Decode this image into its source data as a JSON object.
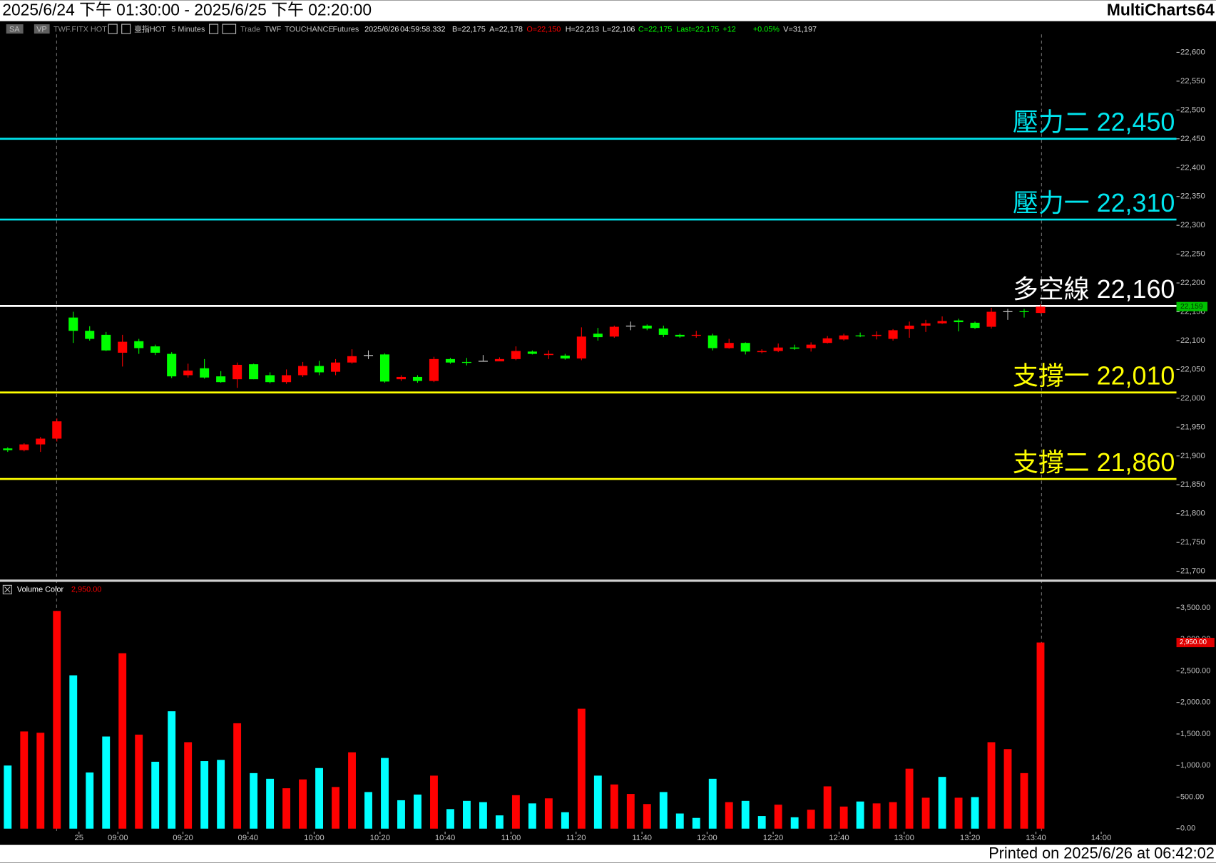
{
  "header": {
    "title": "2025/6/24 下午 01:30:00 - 2025/6/25 下午 02:20:00",
    "app": "MultiCharts64",
    "toolbar": [
      {
        "text": "SA",
        "color": "#c0c0c0"
      },
      {
        "text": "VP",
        "color": "#c0c0c0"
      },
      {
        "text": "TWF.FITX HOT",
        "color": "#8a8a8a"
      },
      {
        "text": "臺指HOT",
        "color": "#c0c0c0"
      },
      {
        "text": "5 Minutes",
        "color": "#c0c0c0"
      },
      {
        "text": "Trade",
        "color": "#8a8a8a"
      },
      {
        "text": "TWF",
        "color": "#c0c0c0"
      },
      {
        "text": "TOUCHANCE",
        "color": "#c0c0c0"
      },
      {
        "text": "Futures",
        "color": "#c0c0c0"
      },
      {
        "text": "2025/6/26",
        "color": "#e0e0e0"
      },
      {
        "text": "04:59:58.332",
        "color": "#e0e0e0"
      },
      {
        "text": "B=22,175",
        "color": "#e0e0e0"
      },
      {
        "text": "A=22,178",
        "color": "#e0e0e0"
      },
      {
        "text": "O=22,150",
        "color": "#ff0000"
      },
      {
        "text": "H=22,213",
        "color": "#e0e0e0"
      },
      {
        "text": "L=22,106",
        "color": "#e0e0e0"
      },
      {
        "text": "C=22,175",
        "color": "#00ff00"
      },
      {
        "text": "Last=22,175",
        "color": "#00ff00"
      },
      {
        "text": "+12",
        "color": "#00ff00"
      },
      {
        "text": "+0.05%",
        "color": "#00ff00"
      },
      {
        "text": "V=31,197",
        "color": "#e0e0e0"
      }
    ],
    "footer": "Printed on 2025/6/26 at 06:42:02"
  },
  "chart_data": [
    {
      "type": "candlestick",
      "open": [
        21913,
        21910,
        21920,
        21930,
        22140,
        22117,
        22110,
        22079,
        22099,
        22090,
        22077,
        22040,
        22052,
        22038,
        22033,
        22059,
        22040,
        22028,
        22040,
        22056,
        22046,
        22062,
        22075,
        22076,
        22033,
        22037,
        22030,
        22068,
        22063,
        22065,
        22064,
        22068,
        22081,
        22075,
        22074,
        22069,
        22112,
        22107,
        22126,
        22126,
        22121,
        22110,
        22109,
        22109,
        22087,
        22096,
        22080,
        22082,
        22088,
        22087,
        22096,
        22102,
        22109,
        22108,
        22103,
        22120,
        22126,
        22130,
        22135,
        22131,
        22124,
        22151,
        22151,
        22148
      ],
      "high": [
        21915,
        21922,
        21933,
        21965,
        22150,
        22125,
        22115,
        22110,
        22103,
        22093,
        22080,
        22060,
        22068,
        22047,
        22062,
        22060,
        22045,
        22050,
        22063,
        22065,
        22068,
        22085,
        22083,
        22078,
        22040,
        22040,
        22072,
        22070,
        22070,
        22075,
        22071,
        22090,
        22083,
        22083,
        22077,
        22123,
        22122,
        22126,
        22133,
        22128,
        22126,
        22112,
        22117,
        22112,
        22103,
        22097,
        22085,
        22095,
        22093,
        22097,
        22108,
        22112,
        22114,
        22116,
        22120,
        22133,
        22136,
        22142,
        22138,
        22133,
        22157,
        22155,
        22155,
        22163
      ],
      "low": [
        21907,
        21908,
        21907,
        21925,
        22096,
        22100,
        22082,
        22055,
        22077,
        22075,
        22035,
        22036,
        22034,
        22027,
        22018,
        22033,
        22026,
        22025,
        22037,
        22040,
        22040,
        22060,
        22068,
        22027,
        22030,
        22027,
        22028,
        22060,
        22057,
        22064,
        22065,
        22066,
        22076,
        22068,
        22067,
        22066,
        22100,
        22105,
        22118,
        22118,
        22106,
        22105,
        22105,
        22083,
        22086,
        22076,
        22078,
        22080,
        22084,
        22081,
        22095,
        22100,
        22106,
        22102,
        22100,
        22105,
        22115,
        22129,
        22116,
        22120,
        22121,
        22136,
        22140,
        22147
      ],
      "close": [
        21910,
        21920,
        21930,
        21960,
        22117,
        22103,
        22083,
        22098,
        22087,
        22079,
        22038,
        22048,
        22036,
        22028,
        22058,
        22033,
        22028,
        22040,
        22056,
        22045,
        22062,
        22073,
        22075,
        22029,
        22037,
        22030,
        22068,
        22062,
        22062,
        22065,
        22068,
        22082,
        22077,
        22077,
        22069,
        22107,
        22106,
        22124,
        22126,
        22121,
        22110,
        22107,
        22110,
        22087,
        22096,
        22081,
        22082,
        22088,
        22086,
        22093,
        22104,
        22109,
        22108,
        22110,
        22118,
        22126,
        22130,
        22134,
        22132,
        22122,
        22150,
        22151,
        22150,
        22159
      ],
      "up_color": "#ff0000",
      "down_color": "#00ff00",
      "flat_color": "#c0c0c0",
      "xlim": [
        -0.47,
        71.29
      ],
      "ylim": [
        21685,
        22654
      ],
      "yticks": [
        {
          "value": 21700,
          "label": "21,700"
        },
        {
          "value": 21750,
          "label": "21,750"
        },
        {
          "value": 21800,
          "label": "21,800"
        },
        {
          "value": 21850,
          "label": "21,850"
        },
        {
          "value": 21900,
          "label": "21,900"
        },
        {
          "value": 21950,
          "label": "21,950"
        },
        {
          "value": 22000,
          "label": "22,000"
        },
        {
          "value": 22050,
          "label": "22,050"
        },
        {
          "value": 22100,
          "label": "22,100"
        },
        {
          "value": 22150,
          "label": "22,150"
        },
        {
          "value": 22200,
          "label": "22,200"
        },
        {
          "value": 22250,
          "label": "22,250"
        },
        {
          "value": 22300,
          "label": "22,300"
        },
        {
          "value": 22350,
          "label": "22,350"
        },
        {
          "value": 22400,
          "label": "22,400"
        },
        {
          "value": 22450,
          "label": "22,450"
        },
        {
          "value": 22500,
          "label": "22,500"
        },
        {
          "value": 22550,
          "label": "22,550"
        },
        {
          "value": 22600,
          "label": "22,600"
        }
      ],
      "levels": [
        {
          "value": 22450,
          "label": "壓力二 22,450",
          "color": "#00e5ee"
        },
        {
          "value": 22310,
          "label": "壓力一 22,310",
          "color": "#00e5ee"
        },
        {
          "value": 22160,
          "label": "多空線 22,160",
          "color": "#ffffff"
        },
        {
          "value": 22010,
          "label": "支撐一 22,010",
          "color": "#ffff00"
        },
        {
          "value": 21860,
          "label": "支撐二 21,860",
          "color": "#ffff00"
        }
      ],
      "last_price": {
        "value": 22159,
        "label": "22,159"
      }
    },
    {
      "type": "bar",
      "title": "Volume Color",
      "values": [
        1000,
        1540,
        1520,
        3450,
        2430,
        890,
        1460,
        2780,
        1490,
        1060,
        1860,
        1370,
        1070,
        1090,
        1670,
        880,
        790,
        640,
        780,
        960,
        660,
        1210,
        580,
        1120,
        450,
        540,
        840,
        310,
        440,
        420,
        210,
        530,
        400,
        480,
        260,
        1900,
        840,
        700,
        550,
        390,
        580,
        240,
        170,
        790,
        420,
        440,
        200,
        380,
        180,
        300,
        670,
        350,
        430,
        400,
        420,
        950,
        490,
        820,
        490,
        500,
        1370,
        1260,
        880,
        2950
      ],
      "colors": [
        "#00ffff",
        "#ff0000",
        "#ff0000",
        "#ff0000",
        "#00ffff",
        "#00ffff",
        "#00ffff",
        "#ff0000",
        "#ff0000",
        "#00ffff",
        "#00ffff",
        "#ff0000",
        "#00ffff",
        "#00ffff",
        "#ff0000",
        "#00ffff",
        "#00ffff",
        "#ff0000",
        "#ff0000",
        "#00ffff",
        "#ff0000",
        "#ff0000",
        "#00ffff",
        "#00ffff",
        "#00ffff",
        "#00ffff",
        "#ff0000",
        "#00ffff",
        "#00ffff",
        "#00ffff",
        "#00ffff",
        "#ff0000",
        "#00ffff",
        "#ff0000",
        "#00ffff",
        "#ff0000",
        "#00ffff",
        "#ff0000",
        "#ff0000",
        "#ff0000",
        "#00ffff",
        "#00ffff",
        "#00ffff",
        "#00ffff",
        "#ff0000",
        "#00ffff",
        "#00ffff",
        "#ff0000",
        "#00ffff",
        "#ff0000",
        "#ff0000",
        "#ff0000",
        "#00ffff",
        "#ff0000",
        "#ff0000",
        "#ff0000",
        "#ff0000",
        "#00ffff",
        "#ff0000",
        "#00ffff",
        "#ff0000",
        "#ff0000",
        "#ff0000",
        "#ff0000"
      ],
      "xlim": [
        -0.47,
        71.29
      ],
      "ylim": [
        0,
        3893
      ],
      "yticks": [
        {
          "value": 0,
          "label": "0.00"
        },
        {
          "value": 500,
          "label": "500.00"
        },
        {
          "value": 1000,
          "label": "1,000.00"
        },
        {
          "value": 1500,
          "label": "1,500.00"
        },
        {
          "value": 2000,
          "label": "2,000.00"
        },
        {
          "value": 2500,
          "label": "2,500.00"
        },
        {
          "value": 3000,
          "label": "3,000.00"
        },
        {
          "value": 3500,
          "label": "3,500.00"
        }
      ],
      "xticks": [
        {
          "value": 4.35,
          "label": "25"
        },
        {
          "value": 6.72,
          "label": "09:00"
        },
        {
          "value": 10.69,
          "label": "09:20"
        },
        {
          "value": 14.66,
          "label": "09:40"
        },
        {
          "value": 18.69,
          "label": "10:00"
        },
        {
          "value": 22.71,
          "label": "10:20"
        },
        {
          "value": 26.68,
          "label": "10:40"
        },
        {
          "value": 30.7,
          "label": "11:00"
        },
        {
          "value": 34.67,
          "label": "11:20"
        },
        {
          "value": 38.69,
          "label": "11:40"
        },
        {
          "value": 42.66,
          "label": "12:00"
        },
        {
          "value": 46.69,
          "label": "12:20"
        },
        {
          "value": 50.71,
          "label": "12:40"
        },
        {
          "value": 54.68,
          "label": "13:00"
        },
        {
          "value": 58.7,
          "label": "13:20"
        },
        {
          "value": 62.72,
          "label": "13:40"
        },
        {
          "value": 66.7,
          "label": "14:00"
        }
      ],
      "last_value": {
        "value": 2950,
        "label": "2,950.00"
      }
    }
  ]
}
